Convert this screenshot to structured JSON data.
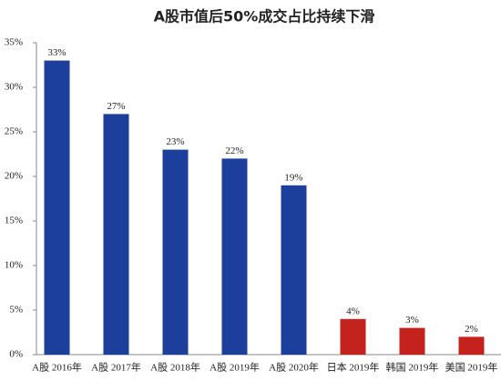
{
  "chart_data": {
    "type": "bar",
    "title": "A股市值后50%成交占比持续下滑",
    "categories": [
      "A股 2016年",
      "A股 2017年",
      "A股 2018年",
      "A股 2019年",
      "A股 2020年",
      "日本 2019年",
      "韩国 2019年",
      "美国 2019年"
    ],
    "values": [
      33,
      27,
      23,
      22,
      19,
      4,
      3,
      2
    ],
    "value_labels": [
      "33%",
      "27%",
      "23%",
      "22%",
      "19%",
      "4%",
      "3%",
      "2%"
    ],
    "colors": [
      "#1c3f9c",
      "#1c3f9c",
      "#1c3f9c",
      "#1c3f9c",
      "#1c3f9c",
      "#c4221d",
      "#c4221d",
      "#c4221d"
    ],
    "ylim": [
      0,
      35
    ],
    "yticks": [
      {
        "value": 0,
        "label": "0%"
      },
      {
        "value": 5,
        "label": "5%"
      },
      {
        "value": 10,
        "label": "10%"
      },
      {
        "value": 15,
        "label": "15%"
      },
      {
        "value": 20,
        "label": "20%"
      },
      {
        "value": 25,
        "label": "25%"
      },
      {
        "value": 30,
        "label": "30%"
      },
      {
        "value": 35,
        "label": "35%"
      }
    ],
    "grid": false
  }
}
